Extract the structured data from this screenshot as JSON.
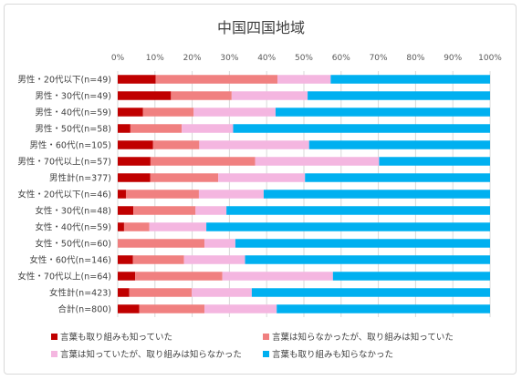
{
  "chart_data": {
    "type": "bar",
    "orientation": "horizontal",
    "stacked": "percent",
    "title": "中国四国地域",
    "xlim": [
      0,
      100
    ],
    "x_ticks": [
      "0%",
      "10%",
      "20%",
      "30%",
      "40%",
      "50%",
      "60%",
      "70%",
      "80%",
      "90%",
      "100%"
    ],
    "grid": true,
    "legend_position": "bottom",
    "categories": [
      "男性・20代以下(n=49)",
      "男性・30代(n=49)",
      "男性・40代(n=59)",
      "男性・50代(n=58)",
      "男性・60代(n=105)",
      "男性・70代以上(n=57)",
      "男性計(n=377)",
      "女性・20代以下(n=46)",
      "女性・30代(n=48)",
      "女性・40代(n=59)",
      "女性・50代(n=60)",
      "女性・60代(n=146)",
      "女性・70代以上(n=64)",
      "女性計(n=423)",
      "合計(n=800)"
    ],
    "series": [
      {
        "name": "言葉も取り組みも知っていた",
        "color": "#c00000",
        "values": [
          10.2,
          14.3,
          6.8,
          3.4,
          9.5,
          8.8,
          8.7,
          2.2,
          4.2,
          1.7,
          0.0,
          4.1,
          4.7,
          3.1,
          5.8
        ]
      },
      {
        "name": "言葉は知らなかったが、取り組みは知っていた",
        "color": "#f08080",
        "values": [
          32.7,
          16.3,
          13.6,
          13.8,
          12.4,
          28.1,
          18.3,
          19.6,
          16.7,
          6.8,
          23.3,
          13.7,
          23.4,
          16.8,
          17.5
        ]
      },
      {
        "name": "言葉は知っていたが、取り組みは知らなかった",
        "color": "#f4b6e0",
        "values": [
          14.3,
          20.4,
          22.0,
          13.8,
          29.5,
          33.3,
          23.3,
          17.4,
          8.3,
          15.3,
          8.3,
          16.4,
          29.7,
          16.1,
          19.4
        ]
      },
      {
        "name": "言葉も取り組みも知らなかった",
        "color": "#00b0f0",
        "values": [
          42.8,
          49.0,
          57.6,
          69.0,
          48.6,
          29.8,
          49.7,
          60.8,
          70.8,
          76.2,
          68.4,
          65.8,
          42.2,
          64.0,
          57.3
        ]
      }
    ]
  }
}
